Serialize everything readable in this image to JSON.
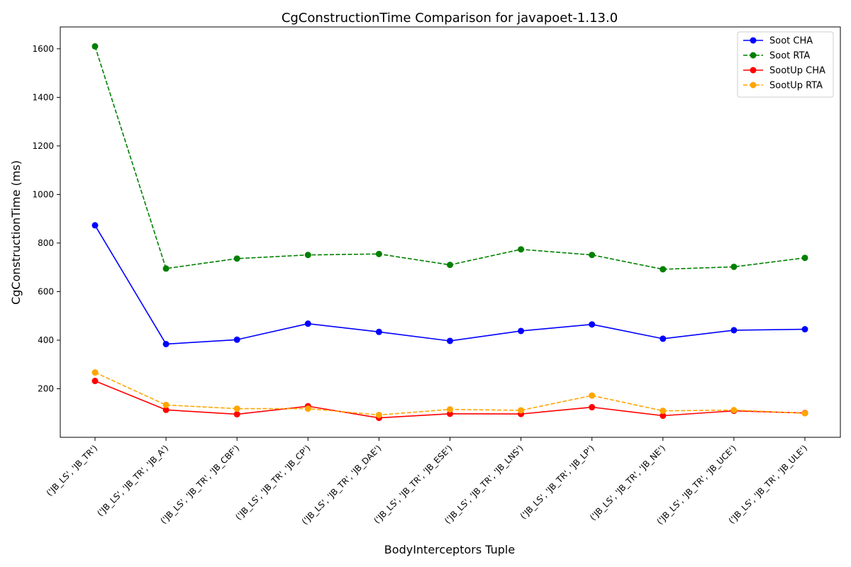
{
  "chart_data": {
    "type": "line",
    "title": "CgConstructionTime Comparison for javapoet-1.13.0",
    "xlabel": "BodyInterceptors Tuple",
    "ylabel": "CgConstructionTime (ms)",
    "ylim": [
      0,
      1690
    ],
    "yticks": [
      200,
      400,
      600,
      800,
      1000,
      1200,
      1400,
      1600
    ],
    "grid": false,
    "legend_position": "top-right",
    "categories": [
      "('JB_LS', 'JB_TR')",
      "('JB_LS', 'JB_TR', 'JB_A')",
      "('JB_LS', 'JB_TR', 'JB_CBF')",
      "('JB_LS', 'JB_TR', 'JB_CP')",
      "('JB_LS', 'JB_TR', 'JB_DAE')",
      "('JB_LS', 'JB_TR', 'JB_ESE')",
      "('JB_LS', 'JB_TR', 'JB_LNS')",
      "('JB_LS', 'JB_TR', 'JB_LP')",
      "('JB_LS', 'JB_TR', 'JB_NE')",
      "('JB_LS', 'JB_TR', 'JB_UCE')",
      "('JB_LS', 'JB_TR', 'JB_ULE')"
    ],
    "series": [
      {
        "name": "Soot CHA",
        "color": "#0000ff",
        "dashed": false,
        "values": [
          873,
          384,
          402,
          468,
          434,
          397,
          438,
          465,
          406,
          441,
          445
        ]
      },
      {
        "name": "Soot RTA",
        "color": "#008000",
        "dashed": true,
        "values": [
          1610,
          695,
          736,
          751,
          755,
          710,
          774,
          751,
          692,
          702,
          739
        ]
      },
      {
        "name": "SootUp CHA",
        "color": "#ff0000",
        "dashed": false,
        "values": [
          232,
          113,
          95,
          128,
          80,
          97,
          96,
          124,
          89,
          109,
          100
        ]
      },
      {
        "name": "SootUp RTA",
        "color": "#ffa500",
        "dashed": true,
        "values": [
          267,
          133,
          118,
          118,
          92,
          115,
          111,
          172,
          109,
          112,
          99
        ]
      }
    ]
  }
}
